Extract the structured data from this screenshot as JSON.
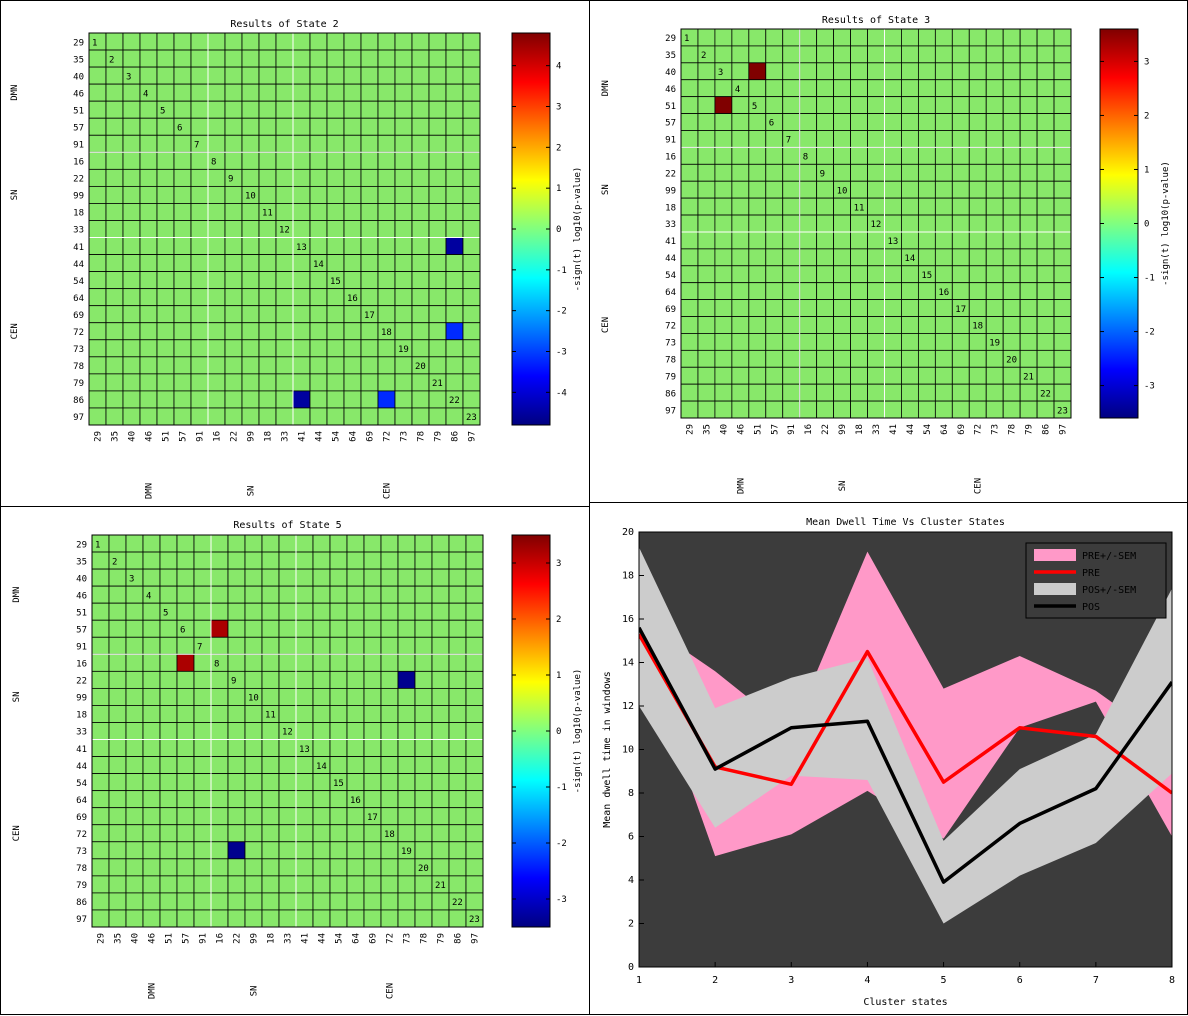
{
  "colors": {
    "cell_green": "#88e86a",
    "cell_dark_red": "#7a0000",
    "cell_red": "#c00000",
    "cell_dark_blue": "#00007a",
    "cell_blue": "#0030e0",
    "cell_mid_blue": "#0018b8",
    "plot_bg": "#3c3c3c",
    "pre_band": "#ff99c8",
    "pos_band": "#cccccc",
    "pre_line": "#ff0000",
    "pos_line": "#000000"
  },
  "chart_data": [
    {
      "type": "heatmap",
      "id": "state2",
      "title": "Results of State 2",
      "row_labels": [
        "29",
        "35",
        "40",
        "46",
        "51",
        "57",
        "91",
        "16",
        "22",
        "99",
        "18",
        "33",
        "41",
        "44",
        "54",
        "64",
        "69",
        "72",
        "73",
        "78",
        "79",
        "86",
        "97"
      ],
      "col_labels": [
        "29",
        "35",
        "40",
        "46",
        "51",
        "57",
        "91",
        "16",
        "22",
        "99",
        "18",
        "33",
        "41",
        "44",
        "54",
        "64",
        "69",
        "72",
        "73",
        "78",
        "79",
        "86",
        "97"
      ],
      "diagonal_labels": [
        "1",
        "2",
        "3",
        "4",
        "5",
        "6",
        "7",
        "8",
        "9",
        "10",
        "11",
        "12",
        "13",
        "14",
        "15",
        "16",
        "17",
        "18",
        "19",
        "20",
        "21",
        "22",
        "23"
      ],
      "group_labels": [
        "DMN",
        "SN",
        "CEN"
      ],
      "highlighted_cells": [
        {
          "row": "41",
          "col": "86",
          "value": -4.5
        },
        {
          "row": "72",
          "col": "86",
          "value": -3.2
        },
        {
          "row": "86",
          "col": "41",
          "value": -4.5
        },
        {
          "row": "86",
          "col": "72",
          "value": -3.2
        }
      ],
      "colorbar_ticks": [
        "4",
        "3",
        "2",
        "1",
        "0",
        "-1",
        "-2",
        "-3",
        "-4"
      ],
      "colorbar_range": [
        -4.8,
        4.8
      ],
      "colorbar_label": "-sign(t) log10(p-value)"
    },
    {
      "type": "heatmap",
      "id": "state3",
      "title": "Results of State 3",
      "row_labels": [
        "29",
        "35",
        "40",
        "46",
        "51",
        "57",
        "91",
        "16",
        "22",
        "99",
        "18",
        "33",
        "41",
        "44",
        "54",
        "64",
        "69",
        "72",
        "73",
        "78",
        "79",
        "86",
        "97"
      ],
      "col_labels": [
        "29",
        "35",
        "40",
        "46",
        "51",
        "57",
        "91",
        "16",
        "22",
        "99",
        "18",
        "33",
        "41",
        "44",
        "54",
        "64",
        "69",
        "72",
        "73",
        "78",
        "79",
        "86",
        "97"
      ],
      "diagonal_labels": [
        "1",
        "2",
        "3",
        "4",
        "5",
        "6",
        "7",
        "8",
        "9",
        "10",
        "11",
        "12",
        "13",
        "14",
        "15",
        "16",
        "17",
        "18",
        "19",
        "20",
        "21",
        "22",
        "23"
      ],
      "group_labels": [
        "DMN",
        "SN",
        "CEN"
      ],
      "highlighted_cells": [
        {
          "row": "40",
          "col": "51",
          "value": 3.6
        },
        {
          "row": "51",
          "col": "40",
          "value": 3.6
        }
      ],
      "colorbar_ticks": [
        "3",
        "2",
        "1",
        "0",
        "-1",
        "-2",
        "-3"
      ],
      "colorbar_range": [
        -3.6,
        3.6
      ],
      "colorbar_label": "-sign(t) log10(p-value)"
    },
    {
      "type": "heatmap",
      "id": "state5",
      "title": "Results of State 5",
      "row_labels": [
        "29",
        "35",
        "40",
        "46",
        "51",
        "57",
        "91",
        "16",
        "22",
        "99",
        "18",
        "33",
        "41",
        "44",
        "54",
        "64",
        "69",
        "72",
        "73",
        "78",
        "79",
        "86",
        "97"
      ],
      "col_labels": [
        "29",
        "35",
        "40",
        "46",
        "51",
        "57",
        "91",
        "16",
        "22",
        "99",
        "18",
        "33",
        "41",
        "44",
        "54",
        "64",
        "69",
        "72",
        "73",
        "78",
        "79",
        "86",
        "97"
      ],
      "diagonal_labels": [
        "1",
        "2",
        "3",
        "4",
        "5",
        "6",
        "7",
        "8",
        "9",
        "10",
        "11",
        "12",
        "13",
        "14",
        "15",
        "16",
        "17",
        "18",
        "19",
        "20",
        "21",
        "22",
        "23"
      ],
      "group_labels": [
        "DMN",
        "SN",
        "CEN"
      ],
      "highlighted_cells": [
        {
          "row": "57",
          "col": "16",
          "value": 3.2
        },
        {
          "row": "16",
          "col": "57",
          "value": 3.2
        },
        {
          "row": "22",
          "col": "73",
          "value": -3.4
        },
        {
          "row": "73",
          "col": "22",
          "value": -3.4
        }
      ],
      "colorbar_ticks": [
        "3",
        "2",
        "1",
        "0",
        "-1",
        "-2",
        "-3"
      ],
      "colorbar_range": [
        -3.5,
        3.5
      ],
      "colorbar_label": "-sign(t) log10(p-value)"
    },
    {
      "type": "line",
      "id": "dwell",
      "title": "Mean Dwell Time Vs Cluster States",
      "xlabel": "Cluster states",
      "ylabel": "Mean dwell time in windows",
      "x": [
        1,
        2,
        3,
        4,
        5,
        6,
        7,
        8
      ],
      "xlim": [
        1,
        8
      ],
      "ylim": [
        0,
        20
      ],
      "x_ticks": [
        "1",
        "2",
        "3",
        "4",
        "5",
        "6",
        "7",
        "8"
      ],
      "y_ticks": [
        "0",
        "2",
        "4",
        "6",
        "8",
        "10",
        "12",
        "14",
        "16",
        "18",
        "20"
      ],
      "legend_position": "top-right",
      "series": [
        {
          "name": "PRE+/-SEM",
          "kind": "band",
          "lower": [
            15.0,
            5.1,
            6.1,
            8.1,
            5.9,
            11.0,
            12.2,
            6.0
          ],
          "upper": [
            16.0,
            13.6,
            10.8,
            19.1,
            12.8,
            14.3,
            12.7,
            10.2
          ]
        },
        {
          "name": "PRE",
          "kind": "line",
          "values": [
            15.3,
            9.2,
            8.4,
            14.5,
            8.5,
            11.0,
            10.6,
            8.0
          ]
        },
        {
          "name": "POS+/-SEM",
          "kind": "band",
          "lower": [
            12.0,
            6.4,
            8.8,
            8.6,
            2.0,
            4.2,
            5.7,
            8.9
          ],
          "upper": [
            19.3,
            11.9,
            13.3,
            14.2,
            5.8,
            9.1,
            10.7,
            17.4
          ]
        },
        {
          "name": "POS",
          "kind": "line",
          "values": [
            15.6,
            9.1,
            11.0,
            11.3,
            3.9,
            6.6,
            8.2,
            13.1
          ]
        }
      ]
    }
  ]
}
